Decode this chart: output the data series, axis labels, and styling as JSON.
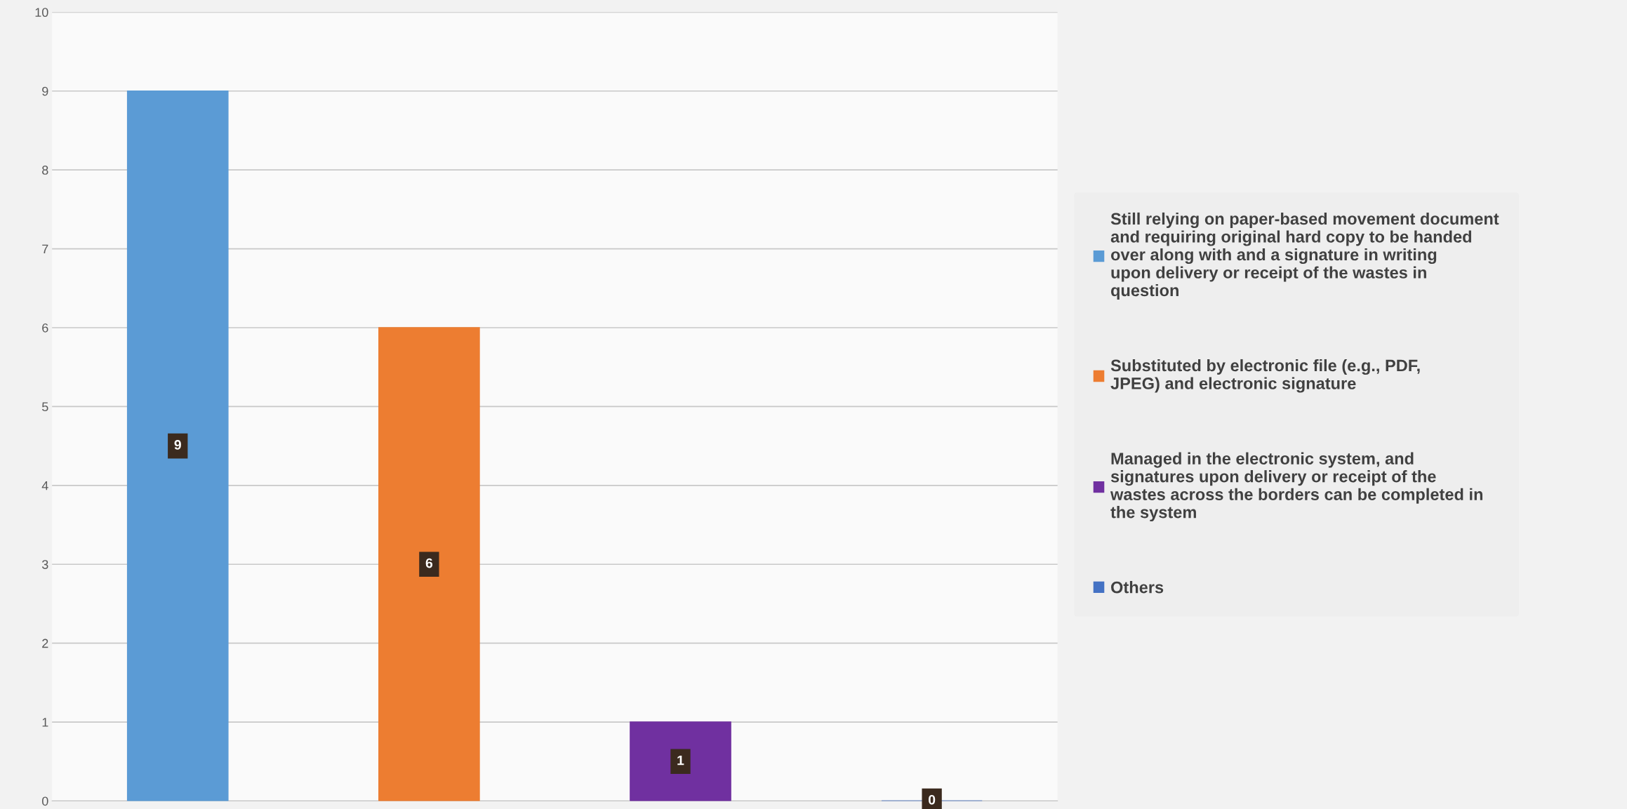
{
  "chart_data": {
    "type": "bar",
    "categories": [
      null,
      null,
      null,
      null
    ],
    "series": [
      {
        "name": "Still relying on paper-based movement document and requiring original hard copy to be handed over along with and a signature in writing upon delivery or receipt of the wastes in question",
        "color": "#5b9bd5",
        "values": [
          9,
          null,
          null,
          null
        ]
      },
      {
        "name": "Substituted by electronic file (e.g., PDF, JPEG) and electronic signature",
        "color": "#ed7d31",
        "values": [
          null,
          6,
          null,
          null
        ]
      },
      {
        "name": "Managed in the electronic system, and signatures upon delivery or receipt of the wastes across the borders can be completed in the system",
        "color": "#7030a0",
        "values": [
          null,
          null,
          1,
          null
        ]
      },
      {
        "name": "Others",
        "color": "#4472c4",
        "values": [
          null,
          null,
          null,
          0
        ]
      }
    ],
    "ylim": [
      0,
      10
    ],
    "yticks": [
      0,
      1,
      2,
      3,
      4,
      5,
      6,
      7,
      8,
      9,
      10
    ],
    "grid": "y",
    "legend": "right",
    "data_labels": true
  }
}
